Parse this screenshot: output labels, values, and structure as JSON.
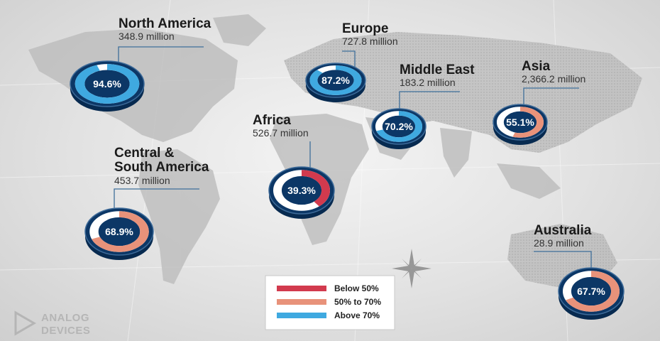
{
  "chart_data": {
    "type": "pie",
    "series_unit": "percent",
    "regions": [
      {
        "name": "North America",
        "population": "348.9 million",
        "value": 94.6,
        "pct_label": "94.6%"
      },
      {
        "name": "Europe",
        "population": "727.8 million",
        "value": 87.2,
        "pct_label": "87.2%"
      },
      {
        "name": "Middle East",
        "population": "183.2 million",
        "value": 70.2,
        "pct_label": "70.2%"
      },
      {
        "name": "Asia",
        "population": "2,366.2 million",
        "value": 55.1,
        "pct_label": "55.1%"
      },
      {
        "name": "Africa",
        "population": "526.7 million",
        "value": 39.3,
        "pct_label": "39.3%"
      },
      {
        "name_lines": [
          "Central &",
          "South America"
        ],
        "population": "453.7 million",
        "value": 68.9,
        "pct_label": "68.9%"
      },
      {
        "name": "Australia",
        "population": "28.9 million",
        "value": 67.7,
        "pct_label": "67.7%"
      }
    ],
    "legend": {
      "placement": "bottom-center",
      "items": [
        {
          "label": "Below 50%",
          "color": "#d23a4e"
        },
        {
          "label": "50% to 70%",
          "color": "#e8927a"
        },
        {
          "label": "Above 70%",
          "color": "#3fa9e0"
        }
      ]
    }
  },
  "branding": {
    "logo_line1": "ANALOG",
    "logo_line2": "DEVICES"
  },
  "colors": {
    "donut_dark": "#0c3766",
    "donut_side": "#072a50",
    "donut_rim": "#3e6b99",
    "leader_line": "#3f6f9a",
    "map_land": "#b4b4b4"
  }
}
